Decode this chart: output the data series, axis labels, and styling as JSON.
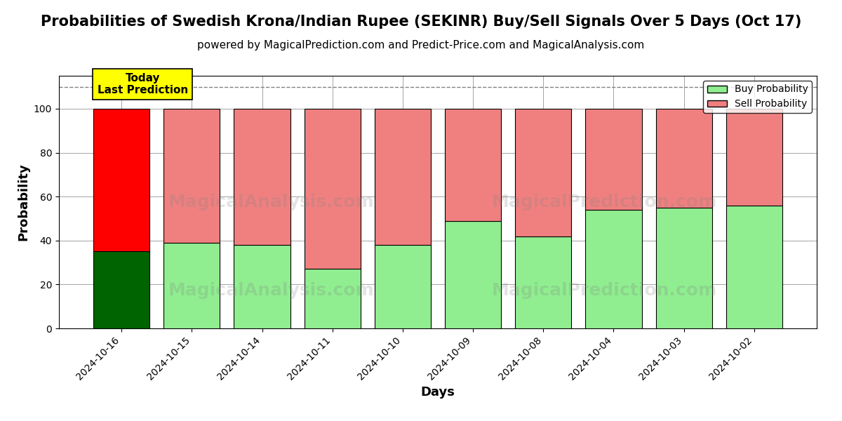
{
  "title": "Probabilities of Swedish Krona/Indian Rupee (SEKINR) Buy/Sell Signals Over 5 Days (Oct 17)",
  "subtitle": "powered by MagicalPrediction.com and Predict-Price.com and MagicalAnalysis.com",
  "xlabel": "Days",
  "ylabel": "Probability",
  "categories": [
    "2024-10-16",
    "2024-10-15",
    "2024-10-14",
    "2024-10-11",
    "2024-10-10",
    "2024-10-09",
    "2024-10-08",
    "2024-10-04",
    "2024-10-03",
    "2024-10-02"
  ],
  "buy_values": [
    35,
    39,
    38,
    27,
    38,
    49,
    42,
    54,
    55,
    56
  ],
  "sell_values": [
    65,
    61,
    62,
    73,
    62,
    51,
    58,
    46,
    45,
    44
  ],
  "today_bar_buy_color": "#006400",
  "today_bar_sell_color": "#FF0000",
  "other_bar_buy_color": "#90EE90",
  "other_bar_sell_color": "#F08080",
  "bar_edge_color": "#000000",
  "grid_color": "#808080",
  "background_color": "#FFFFFF",
  "dashed_line_y": 110,
  "ylim": [
    0,
    115
  ],
  "yticks": [
    0,
    20,
    40,
    60,
    80,
    100
  ],
  "legend_buy_label": "Buy Probability",
  "legend_sell_label": "Sell Probability",
  "today_label_text": "Today\nLast Prediction",
  "today_label_bg": "#FFFF00",
  "title_fontsize": 15,
  "subtitle_fontsize": 11,
  "axis_label_fontsize": 13,
  "tick_fontsize": 10
}
